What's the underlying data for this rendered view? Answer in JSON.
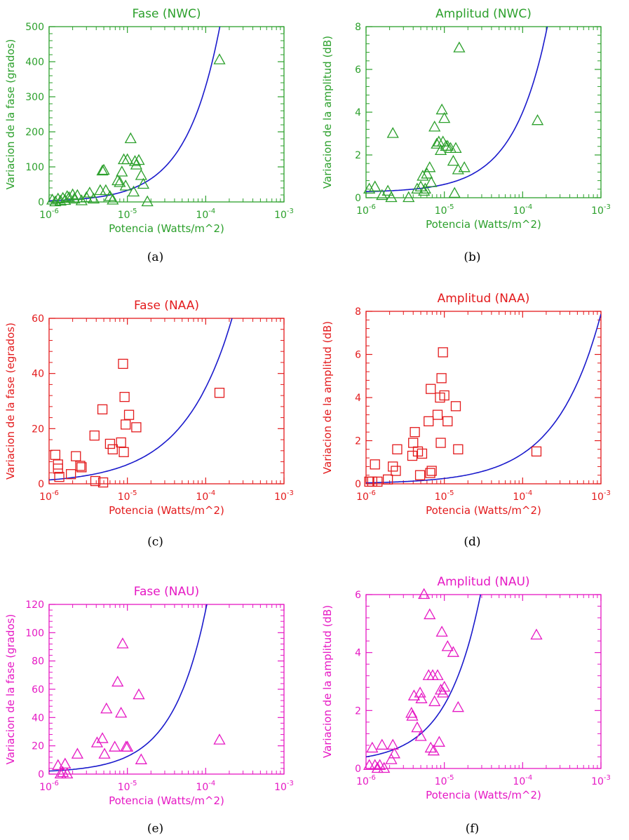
{
  "fit_line_color": "#1a1acc",
  "chart_data": [
    {
      "type": "scatter",
      "title": "Fase (NWC)",
      "caption": "(a)",
      "color": "#2ca02c",
      "marker": "triangle",
      "xlabel": "Potencia (Watts/m^2)",
      "ylabel": "Variacion de la fase (grados)",
      "xscale": "log",
      "xlim": [
        1e-06,
        0.001
      ],
      "ylim": [
        0,
        500
      ],
      "xticks": [
        1e-06,
        1e-05,
        0.0001,
        0.001
      ],
      "xtick_labels": [
        {
          "base": "10",
          "exp": "-6"
        },
        {
          "base": "10",
          "exp": "-5"
        },
        {
          "base": "10",
          "exp": "-4"
        },
        {
          "base": "10",
          "exp": "-3"
        }
      ],
      "yticks": [
        0,
        100,
        200,
        300,
        400,
        500
      ],
      "ytick_labels": [
        "0",
        "100",
        "200",
        "300",
        "400",
        "500"
      ],
      "points": [
        [
          1.1e-06,
          5
        ],
        [
          1.2e-06,
          0
        ],
        [
          1.3e-06,
          8
        ],
        [
          1.4e-06,
          2
        ],
        [
          1.5e-06,
          10
        ],
        [
          1.6e-06,
          4
        ],
        [
          1.7e-06,
          15
        ],
        [
          1.8e-06,
          12
        ],
        [
          2e-06,
          20
        ],
        [
          2.1e-06,
          8
        ],
        [
          2.3e-06,
          18
        ],
        [
          2.6e-06,
          3
        ],
        [
          3e-06,
          12
        ],
        [
          3.3e-06,
          25
        ],
        [
          3.7e-06,
          8
        ],
        [
          4.5e-06,
          32
        ],
        [
          4.8e-06,
          88
        ],
        [
          5e-06,
          90
        ],
        [
          5.3e-06,
          32
        ],
        [
          6e-06,
          15
        ],
        [
          6.5e-06,
          5
        ],
        [
          7.5e-06,
          60
        ],
        [
          8e-06,
          55
        ],
        [
          8.5e-06,
          85
        ],
        [
          9e-06,
          120
        ],
        [
          9.5e-06,
          45
        ],
        [
          1e-05,
          120
        ],
        [
          1.1e-05,
          180
        ],
        [
          1.2e-05,
          28
        ],
        [
          1.25e-05,
          115
        ],
        [
          1.3e-05,
          105
        ],
        [
          1.4e-05,
          118
        ],
        [
          1.5e-05,
          75
        ],
        [
          1.6e-05,
          50
        ],
        [
          1.8e-05,
          0
        ],
        [
          0.00015,
          405
        ]
      ],
      "fit": {
        "model": "linear",
        "slope": 3300000
      }
    },
    {
      "type": "scatter",
      "title": "Amplitud (NWC)",
      "caption": "(b)",
      "color": "#2ca02c",
      "marker": "triangle",
      "xlabel": "Potencia (Watts/m^2)",
      "ylabel": "Variacion de la amplitud (dB)",
      "xscale": "log",
      "xlim": [
        1e-06,
        0.001
      ],
      "ylim": [
        0,
        8
      ],
      "xticks": [
        1e-06,
        1e-05,
        0.0001,
        0.001
      ],
      "xtick_labels": [
        {
          "base": "10",
          "exp": "-6"
        },
        {
          "base": "10",
          "exp": "-5"
        },
        {
          "base": "10",
          "exp": "-4"
        },
        {
          "base": "10",
          "exp": "-3"
        }
      ],
      "yticks": [
        0,
        2,
        4,
        6,
        8
      ],
      "ytick_labels": [
        "0",
        "2",
        "4",
        "6",
        "8"
      ],
      "points": [
        [
          1.1e-06,
          0.4
        ],
        [
          1.3e-06,
          0.5
        ],
        [
          1.6e-06,
          0.1
        ],
        [
          1.9e-06,
          0.3
        ],
        [
          2.1e-06,
          0.0
        ],
        [
          2.2e-06,
          3.0
        ],
        [
          3.5e-06,
          0.0
        ],
        [
          4.5e-06,
          0.4
        ],
        [
          5e-06,
          0.5
        ],
        [
          5.3e-06,
          1.0
        ],
        [
          5.5e-06,
          0.3
        ],
        [
          5.7e-06,
          0.4
        ],
        [
          6e-06,
          1.1
        ],
        [
          6.5e-06,
          1.4
        ],
        [
          6.8e-06,
          0.7
        ],
        [
          7.5e-06,
          3.3
        ],
        [
          8e-06,
          2.5
        ],
        [
          8.5e-06,
          2.6
        ],
        [
          9e-06,
          2.2
        ],
        [
          9.3e-06,
          4.1
        ],
        [
          9.6e-06,
          2.6
        ],
        [
          1e-05,
          3.7
        ],
        [
          1.05e-05,
          2.4
        ],
        [
          1.1e-05,
          2.4
        ],
        [
          1.2e-05,
          2.3
        ],
        [
          1.3e-05,
          1.7
        ],
        [
          1.35e-05,
          0.2
        ],
        [
          1.4e-05,
          2.3
        ],
        [
          1.5e-05,
          1.3
        ],
        [
          1.55e-05,
          7.0
        ],
        [
          1.8e-05,
          1.4
        ],
        [
          0.000155,
          3.6
        ]
      ],
      "fit": {
        "model": "linear_offset",
        "slope": 37500,
        "intercept": 0.25
      }
    },
    {
      "type": "scatter",
      "title": "Fase (NAA)",
      "caption": "(c)",
      "color": "#e31a1c",
      "marker": "square",
      "xlabel": "Potencia (Watts/m^2)",
      "ylabel": "Variacion de la fase (egrados)",
      "xscale": "log",
      "xlim": [
        1e-06,
        0.001
      ],
      "ylim": [
        0,
        60
      ],
      "xticks": [
        1e-06,
        1e-05,
        0.0001,
        0.001
      ],
      "xtick_labels": [
        {
          "base": "10",
          "exp": "-6"
        },
        {
          "base": "10",
          "exp": "-5"
        },
        {
          "base": "10",
          "exp": "-4"
        },
        {
          "base": "10",
          "exp": "-3"
        }
      ],
      "yticks": [
        0,
        20,
        40,
        60
      ],
      "ytick_labels": [
        "0",
        "20",
        "40",
        "60"
      ],
      "points": [
        [
          1.2e-06,
          10.5
        ],
        [
          1.3e-06,
          7.0
        ],
        [
          1.3e-06,
          5.5
        ],
        [
          1.35e-06,
          2.5
        ],
        [
          1.9e-06,
          3.5
        ],
        [
          2.2e-06,
          10.0
        ],
        [
          2.5e-06,
          6.5
        ],
        [
          2.6e-06,
          6.0
        ],
        [
          3.8e-06,
          17.5
        ],
        [
          3.9e-06,
          1.0
        ],
        [
          4.8e-06,
          27.0
        ],
        [
          4.9e-06,
          0.5
        ],
        [
          6e-06,
          14.5
        ],
        [
          6.5e-06,
          12.5
        ],
        [
          8.3e-06,
          15.0
        ],
        [
          8.8e-06,
          43.5
        ],
        [
          9e-06,
          11.5
        ],
        [
          9.2e-06,
          31.5
        ],
        [
          9.5e-06,
          21.5
        ],
        [
          1.05e-05,
          25.0
        ],
        [
          1.3e-05,
          20.5
        ],
        [
          0.00015,
          33.0
        ]
      ],
      "fit": {
        "model": "power",
        "coef": 22000,
        "exponent": 0.7
      }
    },
    {
      "type": "scatter",
      "title": "Amplitud (NAA)",
      "caption": "(d)",
      "color": "#e31a1c",
      "marker": "square",
      "xlabel": "Potencia (Watts/m^2)",
      "ylabel": "Variacion de la amplitud (dB)",
      "xscale": "log",
      "xlim": [
        1e-06,
        0.001
      ],
      "ylim": [
        0,
        8
      ],
      "xticks": [
        1e-06,
        1e-05,
        0.0001,
        0.001
      ],
      "xtick_labels": [
        {
          "base": "10",
          "exp": "-6"
        },
        {
          "base": "10",
          "exp": "-5"
        },
        {
          "base": "10",
          "exp": "-4"
        },
        {
          "base": "10",
          "exp": "-3"
        }
      ],
      "yticks": [
        0,
        2,
        4,
        6,
        8
      ],
      "ytick_labels": [
        "0",
        "2",
        "4",
        "6",
        "8"
      ],
      "points": [
        [
          1.1e-06,
          0.1
        ],
        [
          1.2e-06,
          0.1
        ],
        [
          1.3e-06,
          0.9
        ],
        [
          1.4e-06,
          0.1
        ],
        [
          1.9e-06,
          0.2
        ],
        [
          2.2e-06,
          0.8
        ],
        [
          2.4e-06,
          0.6
        ],
        [
          2.5e-06,
          1.6
        ],
        [
          3.9e-06,
          1.3
        ],
        [
          4e-06,
          1.9
        ],
        [
          4.2e-06,
          2.4
        ],
        [
          4.6e-06,
          1.5
        ],
        [
          4.9e-06,
          0.4
        ],
        [
          5.2e-06,
          1.4
        ],
        [
          6.3e-06,
          2.9
        ],
        [
          6.6e-06,
          0.5
        ],
        [
          6.7e-06,
          4.4
        ],
        [
          6.9e-06,
          0.6
        ],
        [
          8.2e-06,
          3.2
        ],
        [
          8.8e-06,
          4.0
        ],
        [
          9e-06,
          1.9
        ],
        [
          9.2e-06,
          4.9
        ],
        [
          9.6e-06,
          6.1
        ],
        [
          1e-05,
          4.1
        ],
        [
          1.1e-05,
          2.9
        ],
        [
          1.4e-05,
          3.6
        ],
        [
          1.5e-05,
          1.6
        ],
        [
          0.00015,
          1.5
        ]
      ],
      "fit": {
        "model": "power",
        "coef": 1400,
        "exponent": 0.75
      }
    },
    {
      "type": "scatter",
      "title": "Fase (NAU)",
      "caption": "(e)",
      "color": "#e619c4",
      "marker": "triangle",
      "xlabel": "Potencia (Watts/m^2)",
      "ylabel": "Variacion de la fase (grados)",
      "xscale": "log",
      "xlim": [
        1e-06,
        0.001
      ],
      "ylim": [
        0,
        120
      ],
      "xticks": [
        1e-06,
        1e-05,
        0.0001,
        0.001
      ],
      "xtick_labels": [
        {
          "base": "10",
          "exp": "-6"
        },
        {
          "base": "10",
          "exp": "-5"
        },
        {
          "base": "10",
          "exp": "-4"
        },
        {
          "base": "10",
          "exp": "-3"
        }
      ],
      "yticks": [
        0,
        20,
        40,
        60,
        80,
        100,
        120
      ],
      "ytick_labels": [
        "0",
        "20",
        "40",
        "60",
        "80",
        "100",
        "120"
      ],
      "points": [
        [
          1.3e-06,
          6
        ],
        [
          1.4e-06,
          0
        ],
        [
          1.5e-06,
          1
        ],
        [
          1.6e-06,
          7
        ],
        [
          1.7e-06,
          0
        ],
        [
          2.3e-06,
          14
        ],
        [
          4.1e-06,
          22
        ],
        [
          4.8e-06,
          25
        ],
        [
          5.1e-06,
          14
        ],
        [
          5.4e-06,
          46
        ],
        [
          6.9e-06,
          19
        ],
        [
          7.5e-06,
          65
        ],
        [
          8.3e-06,
          43
        ],
        [
          8.7e-06,
          92
        ],
        [
          9.6e-06,
          19
        ],
        [
          1e-05,
          19
        ],
        [
          1.4e-05,
          56
        ],
        [
          1.5e-05,
          10
        ],
        [
          0.00015,
          24
        ]
      ],
      "fit": {
        "model": "linear_offset",
        "slope": 1150000,
        "intercept": 1.0
      }
    },
    {
      "type": "scatter",
      "title": "Amplitud (NAU)",
      "caption": "(f)",
      "color": "#e619c4",
      "marker": "triangle",
      "xlabel": "Potencia (Watts/m^2)",
      "ylabel": "Variacion de la amplitud (dB)",
      "xscale": "log",
      "xlim": [
        1e-06,
        0.001
      ],
      "ylim": [
        0,
        6
      ],
      "xticks": [
        1e-06,
        1e-05,
        0.0001,
        0.001
      ],
      "xtick_labels": [
        {
          "base": "10",
          "exp": "-6"
        },
        {
          "base": "10",
          "exp": "-5"
        },
        {
          "base": "10",
          "exp": "-4"
        },
        {
          "base": "10",
          "exp": "-3"
        }
      ],
      "yticks": [
        0,
        2,
        4,
        6
      ],
      "ytick_labels": [
        "0",
        "2",
        "4",
        "6"
      ],
      "points": [
        [
          1.1e-06,
          0.1
        ],
        [
          1.2e-06,
          0.7
        ],
        [
          1.3e-06,
          0.1
        ],
        [
          1.4e-06,
          0.0
        ],
        [
          1.5e-06,
          0.1
        ],
        [
          1.6e-06,
          0.8
        ],
        [
          1.7e-06,
          0.0
        ],
        [
          2.1e-06,
          0.3
        ],
        [
          2.2e-06,
          0.8
        ],
        [
          2.3e-06,
          0.5
        ],
        [
          3.8e-06,
          1.9
        ],
        [
          3.9e-06,
          1.8
        ],
        [
          4.1e-06,
          2.5
        ],
        [
          4.5e-06,
          1.4
        ],
        [
          4.9e-06,
          2.6
        ],
        [
          5e-06,
          1.1
        ],
        [
          5.1e-06,
          2.4
        ],
        [
          5.5e-06,
          6.0
        ],
        [
          6.3e-06,
          3.2
        ],
        [
          6.5e-06,
          5.3
        ],
        [
          6.7e-06,
          0.7
        ],
        [
          7.1e-06,
          3.2
        ],
        [
          7.3e-06,
          0.6
        ],
        [
          7.5e-06,
          2.3
        ],
        [
          8.2e-06,
          3.2
        ],
        [
          8.6e-06,
          0.9
        ],
        [
          9e-06,
          2.7
        ],
        [
          9.3e-06,
          4.7
        ],
        [
          9.6e-06,
          2.6
        ],
        [
          1e-05,
          2.8
        ],
        [
          1.1e-05,
          4.2
        ],
        [
          1.3e-05,
          4.0
        ],
        [
          1.5e-05,
          2.1
        ],
        [
          0.00015,
          4.6
        ]
      ],
      "fit": {
        "model": "linear_offset",
        "slope": 200000,
        "intercept": 0.2
      }
    }
  ]
}
